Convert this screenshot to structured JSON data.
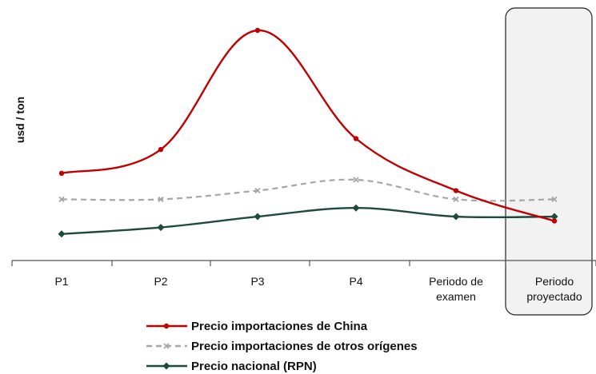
{
  "chart_data": {
    "type": "line",
    "ylabel": "usd / ton",
    "categories": [
      "P1",
      "P2",
      "P3",
      "P4",
      "Periodo de\nexamen",
      "Periodo\nproyectado"
    ],
    "y_ticks_shown": false,
    "ylim": [
      0,
      100
    ],
    "highlight_region": {
      "category": "Periodo\nproyectado",
      "shaded": true
    },
    "series": [
      {
        "name": "Precio importaciones de China",
        "color": "#c00000",
        "dash": "solid",
        "marker": "circle",
        "values": [
          34,
          45,
          100,
          50,
          26,
          12
        ]
      },
      {
        "name": "Precio importaciones de otros orígenes",
        "color": "#a6a6a6",
        "dash": "dashed",
        "marker": "x",
        "values": [
          22,
          22,
          26,
          31,
          22,
          22
        ]
      },
      {
        "name": "Precio nacional (RPN)",
        "color": "#1e4a3a",
        "dash": "solid",
        "marker": "diamond",
        "values": [
          6,
          9,
          14,
          18,
          14,
          14
        ]
      }
    ],
    "legend_position": "bottom"
  }
}
